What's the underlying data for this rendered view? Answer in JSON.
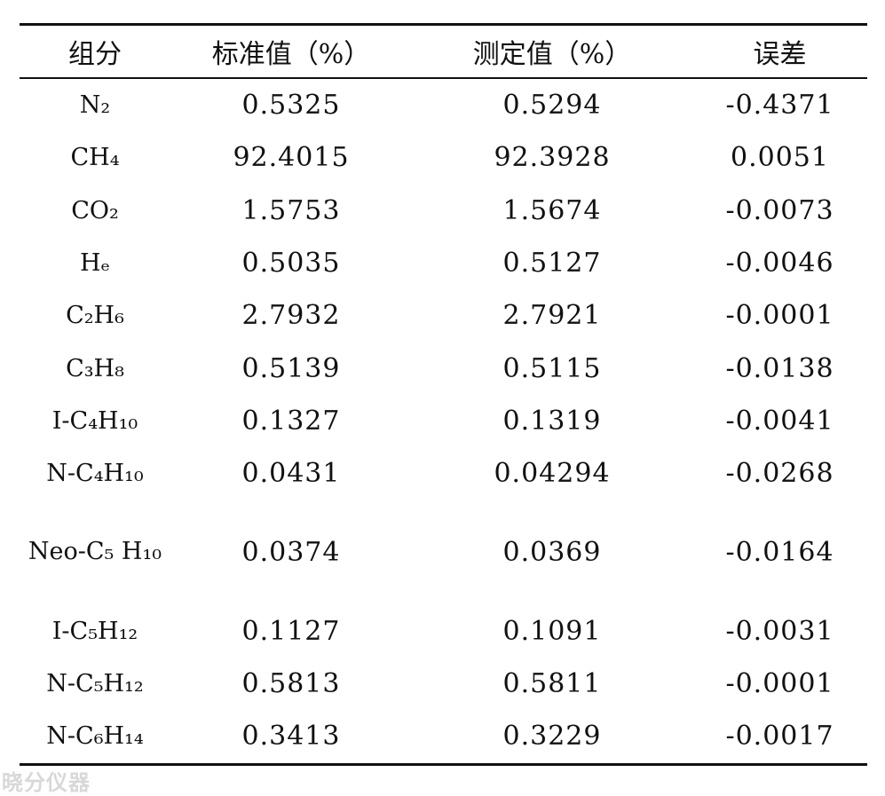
{
  "table": {
    "headers": [
      "组分",
      "标准值（%）",
      "测定值（%）",
      "误差"
    ],
    "rows": [
      {
        "component": "N₂",
        "standard": "0.5325",
        "measured": "0.5294",
        "error": "-0.4371"
      },
      {
        "component": "CH₄",
        "standard": "92.4015",
        "measured": "92.3928",
        "error": "0.0051"
      },
      {
        "component": "CO₂",
        "standard": "1.5753",
        "measured": "1.5674",
        "error": "-0.0073"
      },
      {
        "component": "Hₑ",
        "standard": "0.5035",
        "measured": "0.5127",
        "error": "-0.0046"
      },
      {
        "component": "C₂H₆",
        "standard": "2.7932",
        "measured": "2.7921",
        "error": "-0.0001"
      },
      {
        "component": "C₃H₈",
        "standard": "0.5139",
        "measured": "0.5115",
        "error": "-0.0138"
      },
      {
        "component": "I-C₄H₁₀",
        "standard": "0.1327",
        "measured": "0.1319",
        "error": "-0.0041"
      },
      {
        "component": "N-C₄H₁₀",
        "standard": "0.0431",
        "measured": "0.04294",
        "error": "-0.0268"
      },
      {
        "component": "Neo-C₅ H₁₀",
        "standard": "0.0374",
        "measured": "0.0369",
        "error": "-0.0164"
      },
      {
        "component": "I-C₅H₁₂",
        "standard": "0.1127",
        "measured": "0.1091",
        "error": "-0.0031"
      },
      {
        "component": "N-C₅H₁₂",
        "standard": "0.5813",
        "measured": "0.5811",
        "error": "-0.0001"
      },
      {
        "component": "N-C₆H₁₄",
        "standard": "0.3413",
        "measured": "0.3229",
        "error": "-0.0017"
      }
    ]
  },
  "watermark": "晓分仪器"
}
